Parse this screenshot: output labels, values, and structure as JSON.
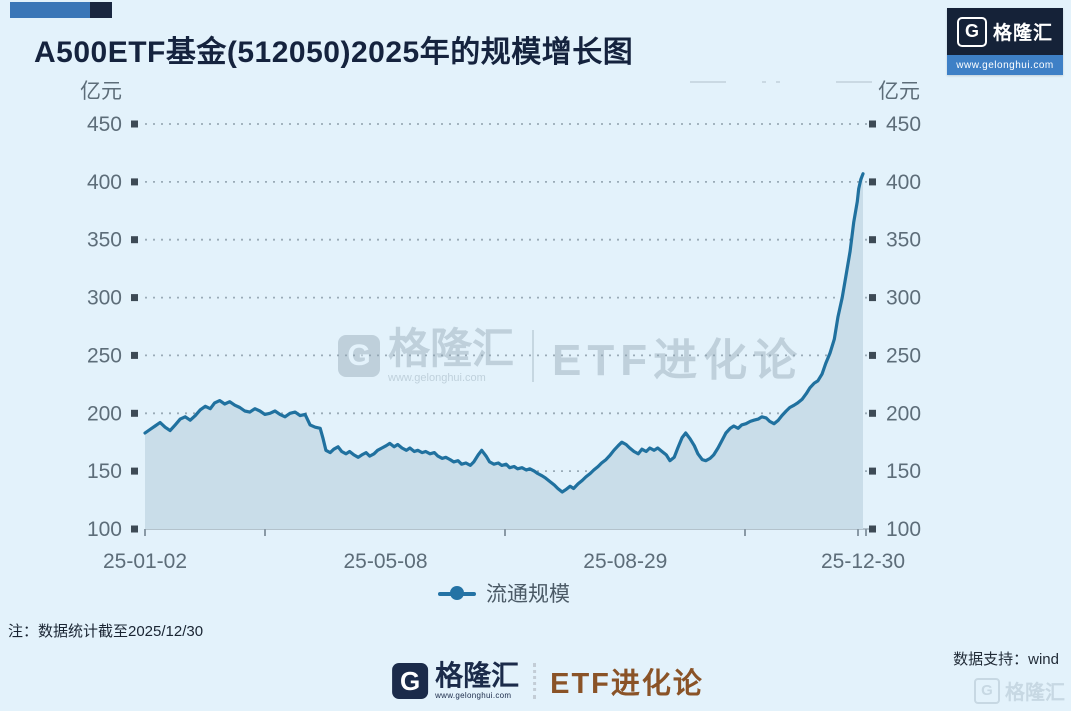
{
  "header": {
    "title": "A500ETF基金(512050)2025年的规模增长图"
  },
  "brand": {
    "logo_letter": "G",
    "name": "格隆汇",
    "url": "www.gelonghui.com",
    "navy": "#152238",
    "blue": "#3e80c6"
  },
  "watermark": {
    "logo_letter": "G",
    "brand": "格隆汇",
    "url": "www.gelonghui.com",
    "series": "ETF进化论"
  },
  "legend": {
    "label": "流通规模"
  },
  "footer": {
    "note": "注：数据统计截至2025/12/30",
    "logo_letter": "G",
    "brand": "格隆汇",
    "brand_url": "www.gelonghui.com",
    "series": "ETF进化论",
    "data_support": "数据支持：wind",
    "ghost_logo_letter": "G",
    "ghost_brand": "格隆汇"
  },
  "chart_data": {
    "type": "area",
    "title": "A500ETF基金(512050)2025年的规模增长图",
    "unit_label": "亿元",
    "series_name": "流通规模",
    "ylim": [
      100,
      450
    ],
    "y_ticks": [
      100,
      150,
      200,
      250,
      300,
      350,
      400,
      450
    ],
    "x_ticks": [
      {
        "label": "25-01-02",
        "t": 0.0
      },
      {
        "label": "25-05-08",
        "t": 0.335
      },
      {
        "label": "25-08-29",
        "t": 0.669
      },
      {
        "label": "25-12-30",
        "t": 1.0
      }
    ],
    "grid": "dotted-horizontal",
    "legend_position": "bottom-center",
    "line_color": "#20719f",
    "fill_color": "#c9dde9",
    "axis_label_color": "#5d6d79",
    "tick_square_color": "#3d4a55",
    "points": [
      [
        0.0,
        183
      ],
      [
        0.007,
        186
      ],
      [
        0.014,
        189
      ],
      [
        0.021,
        192
      ],
      [
        0.028,
        188
      ],
      [
        0.035,
        185
      ],
      [
        0.042,
        190
      ],
      [
        0.049,
        195
      ],
      [
        0.056,
        197
      ],
      [
        0.063,
        194
      ],
      [
        0.07,
        198
      ],
      [
        0.077,
        203
      ],
      [
        0.084,
        206
      ],
      [
        0.091,
        204
      ],
      [
        0.097,
        209
      ],
      [
        0.104,
        211
      ],
      [
        0.111,
        208
      ],
      [
        0.118,
        210
      ],
      [
        0.125,
        207
      ],
      [
        0.132,
        205
      ],
      [
        0.139,
        202
      ],
      [
        0.146,
        201
      ],
      [
        0.153,
        204
      ],
      [
        0.16,
        202
      ],
      [
        0.167,
        199
      ],
      [
        0.174,
        200
      ],
      [
        0.181,
        202
      ],
      [
        0.188,
        199
      ],
      [
        0.195,
        197
      ],
      [
        0.202,
        200
      ],
      [
        0.209,
        201
      ],
      [
        0.216,
        198
      ],
      [
        0.223,
        199
      ],
      [
        0.23,
        190
      ],
      [
        0.237,
        188
      ],
      [
        0.244,
        187
      ],
      [
        0.248,
        178
      ],
      [
        0.252,
        168
      ],
      [
        0.258,
        166
      ],
      [
        0.263,
        169
      ],
      [
        0.269,
        171
      ],
      [
        0.274,
        167
      ],
      [
        0.28,
        165
      ],
      [
        0.285,
        167
      ],
      [
        0.291,
        164
      ],
      [
        0.297,
        162
      ],
      [
        0.302,
        164
      ],
      [
        0.308,
        166
      ],
      [
        0.313,
        163
      ],
      [
        0.319,
        165
      ],
      [
        0.324,
        168
      ],
      [
        0.33,
        170
      ],
      [
        0.336,
        172
      ],
      [
        0.341,
        174
      ],
      [
        0.347,
        171
      ],
      [
        0.352,
        173
      ],
      [
        0.358,
        170
      ],
      [
        0.364,
        168
      ],
      [
        0.369,
        170
      ],
      [
        0.375,
        167
      ],
      [
        0.38,
        168
      ],
      [
        0.386,
        166
      ],
      [
        0.391,
        167
      ],
      [
        0.397,
        165
      ],
      [
        0.403,
        166
      ],
      [
        0.408,
        163
      ],
      [
        0.414,
        161
      ],
      [
        0.419,
        162
      ],
      [
        0.425,
        160
      ],
      [
        0.43,
        158
      ],
      [
        0.436,
        159
      ],
      [
        0.441,
        156
      ],
      [
        0.447,
        157
      ],
      [
        0.453,
        155
      ],
      [
        0.458,
        158
      ],
      [
        0.464,
        164
      ],
      [
        0.469,
        168
      ],
      [
        0.475,
        163
      ],
      [
        0.48,
        158
      ],
      [
        0.486,
        156
      ],
      [
        0.492,
        157
      ],
      [
        0.497,
        155
      ],
      [
        0.503,
        156
      ],
      [
        0.508,
        153
      ],
      [
        0.514,
        154
      ],
      [
        0.519,
        152
      ],
      [
        0.525,
        153
      ],
      [
        0.531,
        151
      ],
      [
        0.536,
        152
      ],
      [
        0.542,
        150
      ],
      [
        0.547,
        148
      ],
      [
        0.553,
        146
      ],
      [
        0.558,
        144
      ],
      [
        0.564,
        141
      ],
      [
        0.57,
        138
      ],
      [
        0.575,
        135
      ],
      [
        0.581,
        132
      ],
      [
        0.586,
        134
      ],
      [
        0.592,
        137
      ],
      [
        0.597,
        135
      ],
      [
        0.603,
        139
      ],
      [
        0.609,
        142
      ],
      [
        0.614,
        145
      ],
      [
        0.62,
        148
      ],
      [
        0.625,
        151
      ],
      [
        0.631,
        154
      ],
      [
        0.636,
        157
      ],
      [
        0.642,
        160
      ],
      [
        0.648,
        164
      ],
      [
        0.653,
        168
      ],
      [
        0.659,
        172
      ],
      [
        0.664,
        175
      ],
      [
        0.67,
        173
      ],
      [
        0.675,
        170
      ],
      [
        0.681,
        167
      ],
      [
        0.687,
        165
      ],
      [
        0.692,
        169
      ],
      [
        0.698,
        167
      ],
      [
        0.703,
        170
      ],
      [
        0.709,
        168
      ],
      [
        0.714,
        170
      ],
      [
        0.72,
        167
      ],
      [
        0.726,
        164
      ],
      [
        0.731,
        159
      ],
      [
        0.737,
        162
      ],
      [
        0.742,
        170
      ],
      [
        0.748,
        179
      ],
      [
        0.753,
        183
      ],
      [
        0.759,
        178
      ],
      [
        0.765,
        172
      ],
      [
        0.77,
        165
      ],
      [
        0.776,
        160
      ],
      [
        0.781,
        159
      ],
      [
        0.787,
        161
      ],
      [
        0.792,
        164
      ],
      [
        0.798,
        170
      ],
      [
        0.804,
        177
      ],
      [
        0.809,
        183
      ],
      [
        0.815,
        187
      ],
      [
        0.82,
        189
      ],
      [
        0.826,
        187
      ],
      [
        0.831,
        190
      ],
      [
        0.837,
        191
      ],
      [
        0.843,
        193
      ],
      [
        0.848,
        194
      ],
      [
        0.854,
        195
      ],
      [
        0.859,
        197
      ],
      [
        0.865,
        196
      ],
      [
        0.87,
        193
      ],
      [
        0.876,
        191
      ],
      [
        0.882,
        194
      ],
      [
        0.887,
        198
      ],
      [
        0.893,
        202
      ],
      [
        0.898,
        205
      ],
      [
        0.904,
        207
      ],
      [
        0.909,
        209
      ],
      [
        0.915,
        212
      ],
      [
        0.921,
        217
      ],
      [
        0.926,
        222
      ],
      [
        0.932,
        226
      ],
      [
        0.937,
        228
      ],
      [
        0.943,
        234
      ],
      [
        0.948,
        243
      ],
      [
        0.954,
        252
      ],
      [
        0.96,
        264
      ],
      [
        0.965,
        283
      ],
      [
        0.971,
        300
      ],
      [
        0.976,
        318
      ],
      [
        0.982,
        340
      ],
      [
        0.987,
        365
      ],
      [
        0.992,
        383
      ],
      [
        0.994,
        394
      ],
      [
        0.997,
        402
      ],
      [
        1.0,
        407
      ]
    ]
  }
}
